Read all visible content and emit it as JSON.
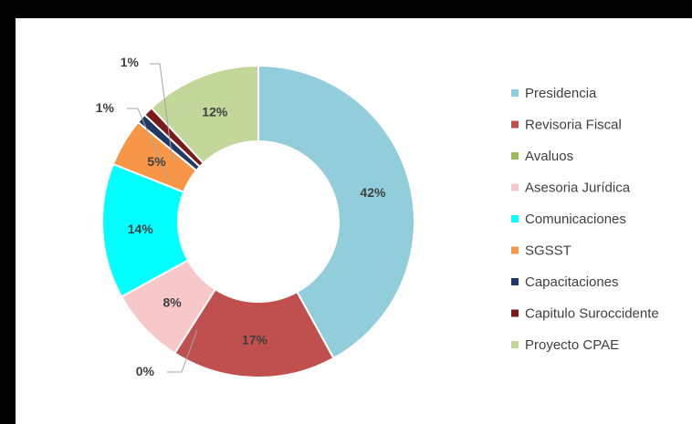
{
  "chart_data": {
    "type": "pie",
    "variant": "doughnut",
    "title": "",
    "legend_position": "right",
    "categories": [
      "Presidencia",
      "Revisoria Fiscal",
      "Avaluos",
      "Asesoria Jurídica",
      "Comunicaciones",
      "SGSST",
      "Capacitaciones",
      "Capitulo Suroccidente",
      "Proyecto CPAE"
    ],
    "values": [
      42,
      17,
      0,
      8,
      14,
      5,
      1,
      1,
      12
    ],
    "labels": [
      "42%",
      "17%",
      "0%",
      "8%",
      "14%",
      "5%",
      "1%",
      "1%",
      "12%"
    ],
    "colors": [
      "#92CDDC",
      "#C0504D",
      "#9BBB59",
      "#F8C8C8",
      "#00FFFF",
      "#F79646",
      "#1F3864",
      "#7B1A1A",
      "#C4D79B"
    ]
  }
}
